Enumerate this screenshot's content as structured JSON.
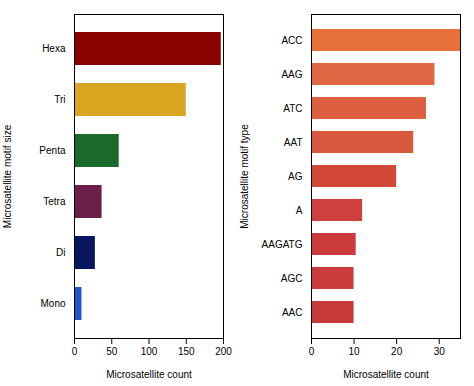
{
  "chart_data": [
    {
      "type": "bar",
      "orientation": "horizontal",
      "categories": [
        "Mono",
        "Di",
        "Tetra",
        "Penta",
        "Tri",
        "Hexa"
      ],
      "values": [
        10,
        28,
        37,
        60,
        150,
        197
      ],
      "colors": [
        "#2255CC",
        "#0A1560",
        "#6B1F4A",
        "#1A6B2A",
        "#DAA520",
        "#8B0000"
      ],
      "xlabel": "Microsatellite count",
      "ylabel": "Microsatellite motif size",
      "xlim": [
        0,
        200
      ],
      "xticks": [
        0,
        50,
        100,
        150,
        200
      ],
      "grid": false
    },
    {
      "type": "bar",
      "orientation": "horizontal",
      "categories": [
        "AAC",
        "AGC",
        "AAGATG",
        "A",
        "AG",
        "AAT",
        "ATC",
        "AAG",
        "ACC"
      ],
      "values": [
        10,
        10,
        10.5,
        12,
        20,
        24,
        27,
        29,
        35
      ],
      "colors": [
        "#C83A3A",
        "#CC3C3C",
        "#CD3C3C",
        "#D04040",
        "#D44838",
        "#D85840",
        "#DC6040",
        "#E06845",
        "#E8703A"
      ],
      "xlabel": "Microsatellite count",
      "ylabel": "Microsatellite motif type",
      "xlim": [
        0,
        35
      ],
      "xticks": [
        0,
        10,
        20,
        30
      ],
      "grid": false
    }
  ]
}
